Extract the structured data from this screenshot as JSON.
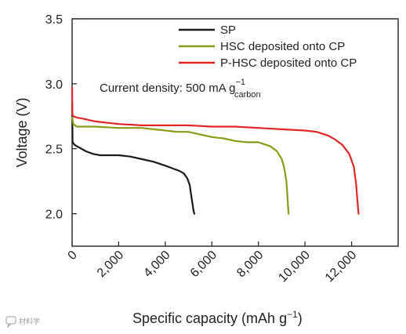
{
  "chart_data": {
    "type": "line",
    "xlabel": "Specific capacity (mAh g",
    "xlabel_sup": "−1",
    "xlabel_close": ")",
    "ylabel": "Voltage (V)",
    "xlim": [
      0,
      14000
    ],
    "ylim": [
      1.75,
      3.5
    ],
    "xticks": [
      0,
      2000,
      4000,
      6000,
      8000,
      10000,
      12000
    ],
    "xtick_labels": [
      "0",
      "2,000",
      "4,000",
      "6,000",
      "8,000",
      "10,000",
      "12,000"
    ],
    "yticks": [
      2.0,
      2.5,
      3.0,
      3.5
    ],
    "ytick_labels": [
      "2.0",
      "2.5",
      "3.0",
      "3.5"
    ],
    "grid": false,
    "legend_position": "top-right",
    "annotation": {
      "text": "Current density: 500 mA g",
      "sup": "−1",
      "sub": "carbon"
    },
    "series": [
      {
        "name": "SP",
        "color": "#1a1a1a",
        "x": [
          0,
          20,
          100,
          300,
          600,
          900,
          1200,
          1600,
          2000,
          2500,
          3000,
          3500,
          4000,
          4300,
          4600,
          4800,
          4950,
          5050,
          5100,
          5150,
          5200,
          5230,
          5250
        ],
        "y": [
          2.86,
          2.55,
          2.53,
          2.51,
          2.48,
          2.46,
          2.45,
          2.45,
          2.45,
          2.44,
          2.42,
          2.4,
          2.37,
          2.35,
          2.33,
          2.31,
          2.27,
          2.22,
          2.16,
          2.1,
          2.04,
          2.01,
          2.0
        ]
      },
      {
        "name": "HSC deposited onto CP",
        "color": "#8a9a1b",
        "x": [
          0,
          50,
          200,
          500,
          1000,
          2000,
          3000,
          4000,
          4500,
          5000,
          5500,
          6000,
          6500,
          7000,
          7500,
          8000,
          8500,
          8800,
          9000,
          9100,
          9200,
          9250,
          9280,
          9300
        ],
        "y": [
          2.74,
          2.69,
          2.67,
          2.67,
          2.67,
          2.66,
          2.66,
          2.64,
          2.63,
          2.63,
          2.61,
          2.59,
          2.58,
          2.56,
          2.55,
          2.55,
          2.52,
          2.48,
          2.42,
          2.36,
          2.25,
          2.12,
          2.04,
          2.0
        ]
      },
      {
        "name": "P-HSC deposited onto CP",
        "color": "#e32428",
        "x": [
          0,
          10,
          60,
          200,
          500,
          1000,
          2000,
          3000,
          4000,
          5000,
          6000,
          7000,
          8000,
          9000,
          10000,
          10500,
          11000,
          11300,
          11600,
          11900,
          12100,
          12200,
          12250,
          12300
        ],
        "y": [
          2.97,
          2.76,
          2.75,
          2.74,
          2.73,
          2.71,
          2.69,
          2.68,
          2.68,
          2.68,
          2.67,
          2.67,
          2.66,
          2.65,
          2.64,
          2.63,
          2.6,
          2.57,
          2.53,
          2.46,
          2.36,
          2.22,
          2.1,
          2.0
        ]
      }
    ]
  },
  "watermark": {
    "icon": "quote-bubble-icon",
    "text": "材料学"
  }
}
